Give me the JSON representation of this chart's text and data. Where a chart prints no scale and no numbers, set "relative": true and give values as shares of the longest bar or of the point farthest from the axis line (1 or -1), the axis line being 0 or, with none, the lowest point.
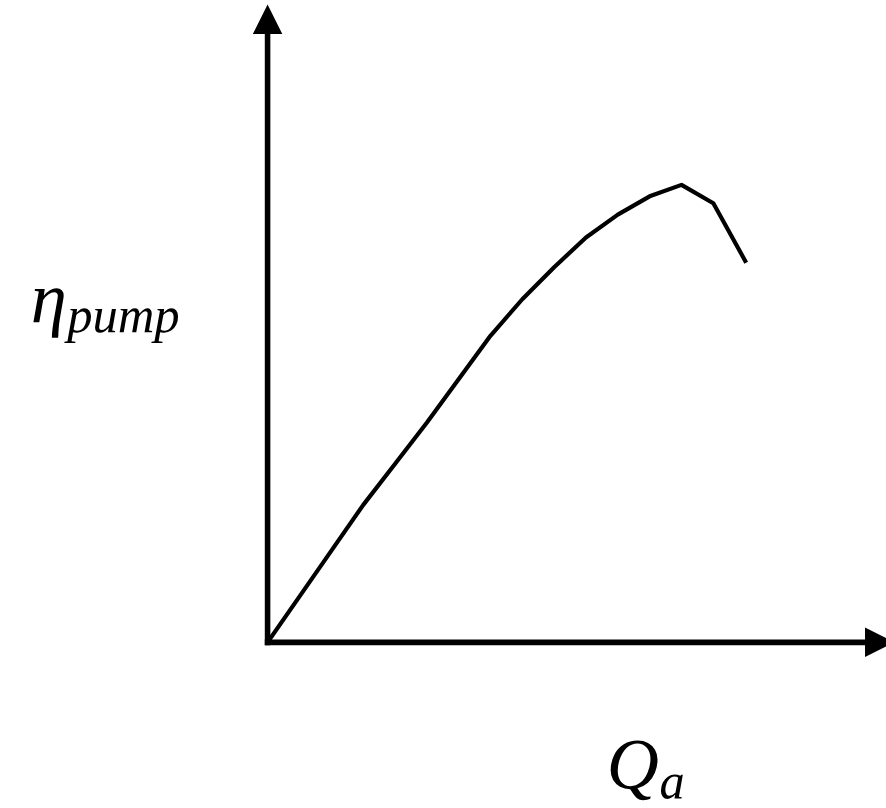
{
  "chart_data": {
    "type": "line",
    "relative": true,
    "xlabel": "Q$_{a}$",
    "ylabel": "η$_{pump}$",
    "categories": [
      null,
      null,
      null,
      null,
      null,
      null,
      null,
      null,
      null,
      null,
      null,
      null,
      null,
      null,
      null,
      null
    ],
    "series": [
      {
        "color": "#000000",
        "values": [
          0,
          0.1,
          0.2,
          0.3,
          0.39,
          0.48,
          0.575,
          0.67,
          0.75,
          0.82,
          0.885,
          0.935,
          0.975,
          1.0,
          0.96,
          0.834
        ]
      }
    ],
    "marker": "none",
    "line_style": "solid"
  }
}
